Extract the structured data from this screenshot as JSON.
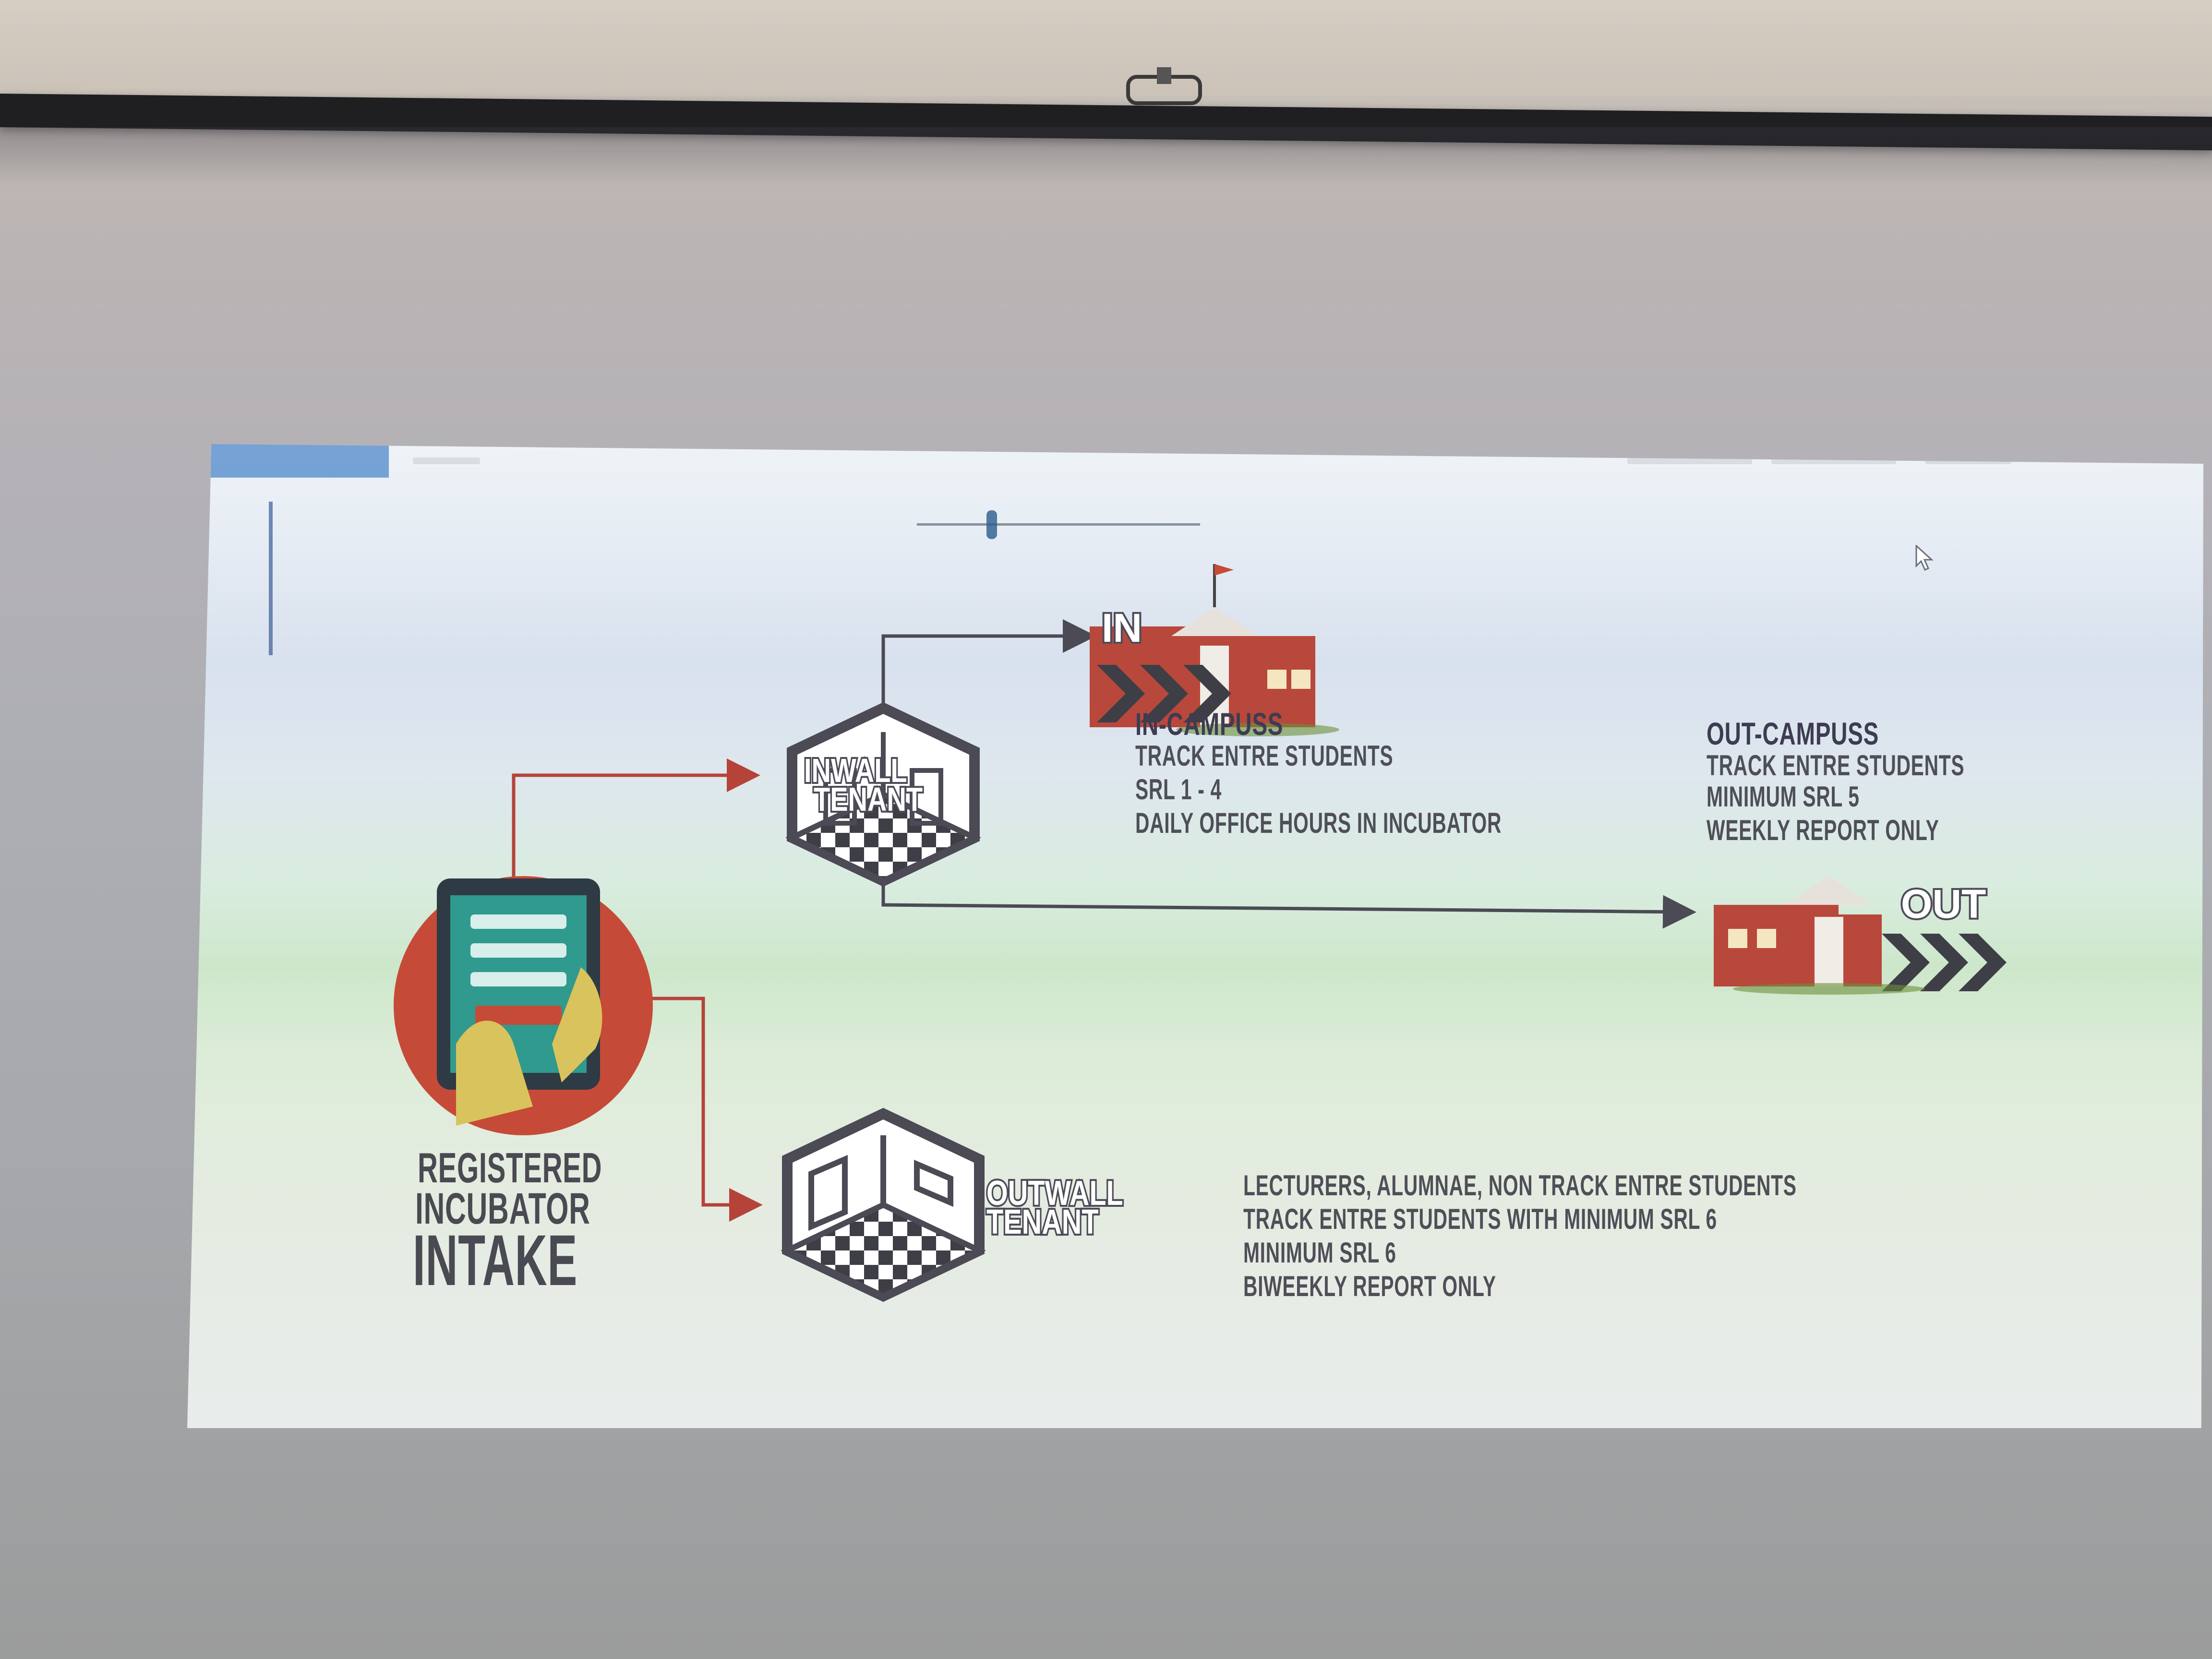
{
  "diagram": {
    "intake_label": [
      "REGISTERED",
      "INCUBATOR",
      "INTAKE"
    ],
    "inwall_badge": [
      "INWALL",
      "TENANT"
    ],
    "outwall_badge": [
      "OUTWALL",
      "TENANT"
    ],
    "in_icon_label": "IN",
    "out_icon_label": "OUT",
    "in_campus": {
      "title": "IN-CAMPUSS",
      "lines": [
        "TRACK ENTRE STUDENTS",
        "SRL 1 - 4",
        "DAILY  OFFICE HOURS IN INCUBATOR"
      ]
    },
    "out_campus": {
      "title": "OUT-CAMPUSS",
      "lines": [
        "TRACK ENTRE STUDENTS",
        "MINIMUM SRL 5",
        "WEEKLY REPORT ONLY"
      ]
    },
    "outwall_details": {
      "lines": [
        "LECTURERS, ALUMNAE, NON TRACK ENTRE STUDENTS",
        "TRACK ENTRE STUDENTS WITH MINIMUM SRL 6",
        "MINIMUM SRL 6",
        "BIWEEKLY  REPORT ONLY"
      ]
    }
  },
  "colors": {
    "arrow_red": "#b5433a",
    "arrow_dark": "#4b4a55",
    "building_red": "#b8483b",
    "tablet_teal": "#2f9a8d",
    "circle_red": "#c64a38",
    "hand_yellow": "#d9c35c"
  },
  "icons": [
    "tablet-hand-icon",
    "inwall-cube-icon",
    "outwall-cube-icon",
    "in-campus-building-icon",
    "out-campus-building-icon",
    "cursor-icon"
  ]
}
